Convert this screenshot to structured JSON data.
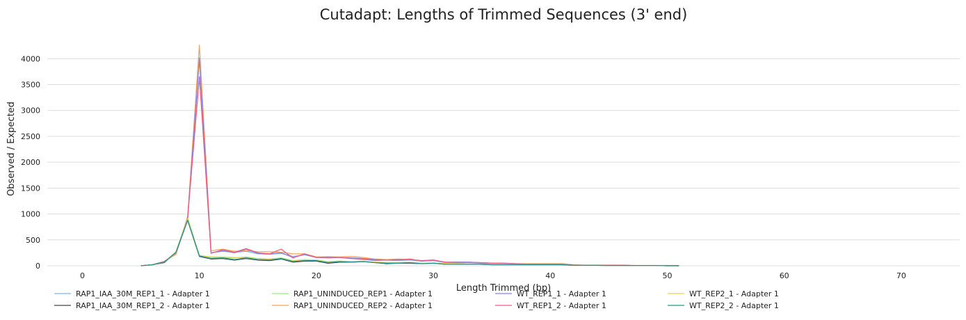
{
  "chart_data": {
    "type": "line",
    "title": "Cutadapt: Lengths of Trimmed Sequences (3' end)",
    "xlabel": "Length Trimmed (bp)",
    "ylabel": "Observed / Expected",
    "xlim": [
      -3,
      75
    ],
    "ylim": [
      0,
      4300
    ],
    "xticks": [
      0,
      10,
      20,
      30,
      40,
      50,
      60,
      70
    ],
    "yticks": [
      0,
      500,
      1000,
      1500,
      2000,
      2500,
      3000,
      3500,
      4000
    ],
    "grid": "horizontal",
    "legend_position": "bottom",
    "x": [
      5,
      6,
      7,
      8,
      9,
      10,
      11,
      12,
      13,
      14,
      15,
      16,
      17,
      18,
      19,
      20,
      21,
      22,
      23,
      24,
      25,
      26,
      27,
      28,
      29,
      30,
      31,
      32,
      33,
      34,
      35,
      36,
      37,
      38,
      39,
      40,
      41,
      42,
      43,
      44,
      45,
      46,
      47,
      48,
      49,
      50,
      51
    ],
    "series": [
      {
        "name": "RAP1_IAA_30M_REP1_1 - Adapter 1",
        "color": "#7cb5ec",
        "values": [
          0,
          20,
          80,
          230,
          900,
          4020,
          250,
          280,
          260,
          280,
          230,
          220,
          240,
          180,
          210,
          160,
          150,
          160,
          140,
          120,
          100,
          110,
          100,
          110,
          90,
          100,
          60,
          60,
          60,
          50,
          40,
          40,
          30,
          30,
          30,
          30,
          30,
          10,
          10,
          10,
          10,
          10,
          5,
          5,
          5,
          5,
          0
        ]
      },
      {
        "name": "RAP1_IAA_30M_REP1_2 - Adapter 1",
        "color": "#434348",
        "values": [
          0,
          20,
          60,
          260,
          880,
          180,
          130,
          140,
          110,
          140,
          110,
          100,
          130,
          70,
          90,
          90,
          50,
          70,
          70,
          80,
          60,
          40,
          50,
          50,
          40,
          50,
          30,
          30,
          30,
          30,
          20,
          20,
          20,
          20,
          20,
          20,
          20,
          10,
          10,
          10,
          5,
          5,
          5,
          5,
          5,
          0,
          0
        ]
      },
      {
        "name": "RAP1_UNINDUCED_REP1 - Adapter 1",
        "color": "#90ed7d",
        "values": [
          0,
          20,
          70,
          270,
          930,
          190,
          160,
          160,
          150,
          170,
          140,
          130,
          150,
          100,
          120,
          110,
          80,
          90,
          80,
          90,
          70,
          60,
          60,
          60,
          50,
          50,
          40,
          40,
          30,
          30,
          30,
          30,
          20,
          20,
          20,
          20,
          20,
          10,
          10,
          10,
          5,
          5,
          5,
          5,
          5,
          0,
          0
        ]
      },
      {
        "name": "RAP1_UNINDUCED_REP2 - Adapter 1",
        "color": "#f7a35c",
        "values": [
          0,
          20,
          80,
          220,
          950,
          4260,
          290,
          320,
          280,
          290,
          270,
          270,
          260,
          230,
          230,
          170,
          170,
          170,
          180,
          160,
          130,
          120,
          130,
          120,
          100,
          110,
          70,
          70,
          70,
          60,
          50,
          50,
          40,
          40,
          40,
          40,
          40,
          20,
          10,
          10,
          10,
          10,
          5,
          5,
          5,
          5,
          0
        ]
      },
      {
        "name": "WT_REP1_1 - Adapter 1",
        "color": "#8085e9",
        "values": [
          0,
          20,
          80,
          240,
          900,
          4000,
          250,
          290,
          250,
          320,
          240,
          230,
          250,
          160,
          220,
          160,
          170,
          160,
          150,
          140,
          120,
          110,
          120,
          120,
          100,
          110,
          70,
          70,
          70,
          60,
          50,
          50,
          40,
          30,
          30,
          30,
          30,
          10,
          10,
          10,
          10,
          10,
          5,
          5,
          5,
          5,
          0
        ]
      },
      {
        "name": "WT_REP1_2 - Adapter 1",
        "color": "#f15c80",
        "values": [
          0,
          20,
          80,
          240,
          920,
          3650,
          240,
          310,
          260,
          330,
          250,
          230,
          320,
          150,
          230,
          160,
          160,
          160,
          140,
          130,
          110,
          110,
          110,
          130,
          90,
          110,
          70,
          60,
          60,
          60,
          50,
          40,
          40,
          30,
          30,
          30,
          30,
          10,
          10,
          10,
          10,
          10,
          5,
          5,
          5,
          5,
          0
        ]
      },
      {
        "name": "WT_REP2_1 - Adapter 1",
        "color": "#e4d354",
        "values": [
          0,
          20,
          70,
          250,
          910,
          200,
          170,
          170,
          160,
          150,
          140,
          130,
          140,
          90,
          110,
          100,
          80,
          80,
          80,
          80,
          70,
          60,
          60,
          60,
          50,
          50,
          40,
          40,
          30,
          30,
          30,
          30,
          20,
          20,
          20,
          20,
          20,
          10,
          10,
          10,
          5,
          5,
          5,
          5,
          5,
          0,
          0
        ]
      },
      {
        "name": "WT_REP2_2 - Adapter 1",
        "color": "#2b908f",
        "values": [
          0,
          20,
          70,
          260,
          880,
          190,
          140,
          150,
          120,
          150,
          120,
          110,
          140,
          80,
          100,
          100,
          60,
          80,
          70,
          80,
          60,
          50,
          50,
          60,
          40,
          50,
          30,
          30,
          30,
          30,
          20,
          20,
          20,
          20,
          20,
          20,
          20,
          10,
          10,
          10,
          5,
          5,
          5,
          5,
          5,
          0,
          0
        ]
      }
    ]
  }
}
